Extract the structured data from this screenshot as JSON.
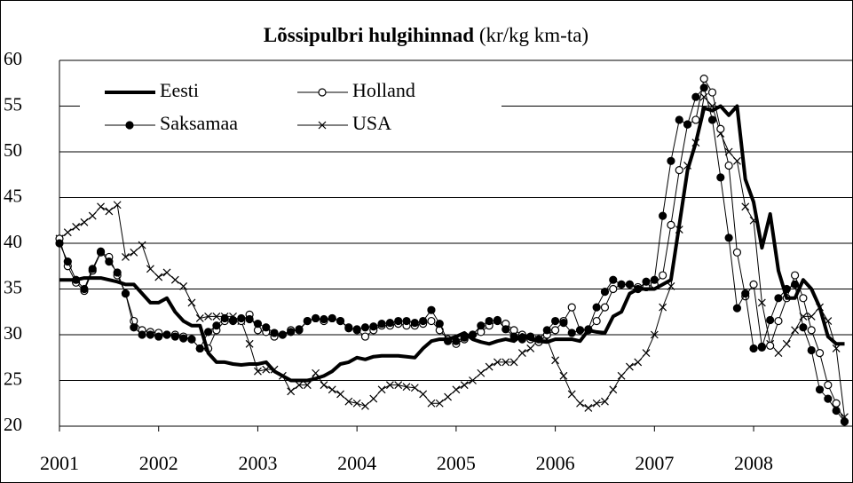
{
  "chart_data": {
    "type": "line",
    "title": "Lõssipulbri hulgihinnad",
    "subtitle": "(kr/kg km-ta)",
    "categories": [
      "2001",
      null,
      null,
      null,
      null,
      null,
      null,
      null,
      null,
      null,
      null,
      null,
      "2002",
      null,
      null,
      null,
      null,
      null,
      null,
      null,
      null,
      null,
      null,
      null,
      "2003",
      null,
      null,
      null,
      null,
      null,
      null,
      null,
      null,
      null,
      null,
      null,
      "2004",
      null,
      null,
      null,
      null,
      null,
      null,
      null,
      null,
      null,
      null,
      null,
      "2005",
      null,
      null,
      null,
      null,
      null,
      null,
      null,
      null,
      null,
      null,
      null,
      "2006",
      null,
      null,
      null,
      null,
      null,
      null,
      null,
      null,
      null,
      null,
      null,
      "2007",
      null,
      null,
      null,
      null,
      null,
      null,
      null,
      null,
      null,
      null,
      null,
      "2008",
      null,
      null,
      null,
      null,
      null,
      null,
      null,
      null,
      null,
      null,
      null
    ],
    "ylim": [
      20,
      60
    ],
    "yticks": [
      20,
      25,
      30,
      35,
      40,
      45,
      50,
      55,
      60
    ],
    "grid": true,
    "legend": "top-left",
    "series": [
      {
        "name": "Eesti",
        "color": "#000000",
        "marker": "none",
        "line_width": 4,
        "values": [
          36,
          36,
          36,
          36.2,
          36.2,
          36.2,
          36,
          35.8,
          35.5,
          35.5,
          34.5,
          33.5,
          33.5,
          34,
          32.5,
          31.5,
          31,
          31,
          28,
          27,
          27,
          26.8,
          26.7,
          26.8,
          26.8,
          27,
          26,
          25.5,
          25,
          25,
          25,
          25.2,
          25.5,
          26,
          26.8,
          27,
          27.5,
          27.3,
          27.6,
          27.7,
          27.7,
          27.7,
          27.6,
          27.5,
          28.5,
          29.3,
          29.5,
          29.5,
          29.8,
          30.2,
          29.5,
          29.2,
          29,
          29.3,
          29.5,
          29.3,
          30,
          29.5,
          29.3,
          29.2,
          29.5,
          29.5,
          29.5,
          29.3,
          30.5,
          30.3,
          30.2,
          32,
          32.5,
          34.5,
          35,
          35,
          35,
          35.5,
          36,
          42,
          48,
          51,
          54.8,
          54.5,
          55,
          54,
          55,
          47,
          44.5,
          39.5,
          43.2,
          37,
          34,
          34,
          36,
          35,
          33,
          29.8,
          29,
          29
        ]
      },
      {
        "name": "Holland",
        "color": "#000000",
        "marker": "circle-open",
        "line_width": 1,
        "values": [
          40.5,
          37.5,
          35.7,
          34.8,
          37,
          39,
          38.5,
          36.5,
          34.5,
          31.5,
          30.5,
          30.3,
          30.2,
          30,
          30,
          29.8,
          29.5,
          28.5,
          28.5,
          30.5,
          31.5,
          31.5,
          31.5,
          32.2,
          30.5,
          30.3,
          29.8,
          30,
          30.5,
          30.5,
          31.5,
          31.8,
          31.5,
          31.8,
          31.5,
          30.8,
          30.5,
          29.8,
          30.5,
          31,
          31,
          31.2,
          31,
          31,
          31.2,
          31.5,
          30.5,
          29.5,
          29,
          29.5,
          30,
          30.3,
          31,
          31.5,
          31.2,
          30.5,
          30,
          29.5,
          29.2,
          30,
          30.5,
          31.5,
          33,
          30.5,
          30.5,
          31.5,
          33,
          35,
          35.5,
          35.5,
          35.2,
          35.2,
          35.5,
          36.5,
          42,
          48,
          53,
          53.5,
          58,
          56.5,
          52.5,
          48.5,
          39,
          34.2,
          35.5,
          28.7,
          28.8,
          31.5,
          34,
          36.5,
          34,
          30.5,
          28,
          24.5,
          22.5,
          20.5
        ]
      },
      {
        "name": "Saksamaa",
        "color": "#000000",
        "marker": "circle",
        "line_width": 1,
        "values": [
          40,
          38,
          36,
          35,
          37.2,
          39.1,
          38,
          36.8,
          34.5,
          30.8,
          30,
          30,
          29.8,
          30,
          29.8,
          29.6,
          29.5,
          28.5,
          30.3,
          31,
          31.8,
          31.6,
          31.8,
          31.7,
          31.2,
          30.8,
          30.2,
          30,
          30.3,
          30.6,
          31.5,
          31.8,
          31.7,
          31.8,
          31.5,
          30.7,
          30.6,
          30.8,
          30.9,
          31.2,
          31.3,
          31.5,
          31.5,
          31.3,
          31.5,
          32.7,
          31.2,
          29.3,
          29.3,
          29.7,
          30,
          31,
          31.5,
          31.6,
          30.6,
          29.8,
          29.5,
          29.8,
          29.5,
          30.5,
          31.5,
          31.3,
          30.2,
          30.5,
          30.6,
          33,
          34.7,
          36,
          35.5,
          35.5,
          35,
          35.8,
          36,
          43,
          49,
          53.5,
          53,
          56,
          57,
          53.5,
          47.2,
          40.6,
          32.9,
          34.5,
          28.5,
          28.6,
          31.6,
          34,
          35,
          35.5,
          30.8,
          28.3,
          24,
          23,
          21.7,
          20.5
        ]
      },
      {
        "name": "USA",
        "color": "#000000",
        "marker": "x",
        "line_width": 1,
        "values": [
          40.5,
          41.2,
          41.8,
          42.3,
          43,
          44,
          43.5,
          44.2,
          38.5,
          39,
          39.8,
          37.2,
          36.3,
          36.8,
          36,
          35.3,
          33.5,
          31.8,
          32,
          32,
          32,
          32,
          31.5,
          29,
          26,
          26.2,
          26.2,
          25.5,
          23.8,
          24.5,
          24.5,
          25.8,
          24.5,
          24,
          23.5,
          22.7,
          22.5,
          22.2,
          23,
          24,
          24.5,
          24.5,
          24.3,
          24.2,
          23.5,
          22.5,
          22.5,
          23.2,
          24,
          24.5,
          25,
          25.8,
          26.5,
          27,
          27,
          27,
          28,
          28.5,
          29.5,
          29.5,
          27.2,
          25.5,
          23.5,
          22.5,
          22,
          22.5,
          22.7,
          24,
          25.5,
          26.5,
          27,
          28,
          30,
          33,
          35.3,
          41.5,
          48.5,
          51,
          56,
          55,
          52,
          50,
          49,
          44,
          42.5,
          33.5,
          29,
          28,
          29,
          30.5,
          32,
          32,
          33,
          31.5,
          28.5,
          21
        ]
      }
    ]
  }
}
